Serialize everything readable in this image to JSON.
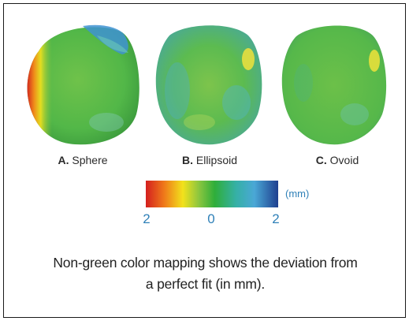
{
  "shapes": [
    {
      "letter": "A.",
      "name": "Sphere"
    },
    {
      "letter": "B.",
      "name": "Ellipsoid"
    },
    {
      "letter": "C.",
      "name": "Ovoid"
    }
  ],
  "colorbar": {
    "unit": "(mm)",
    "ticks": [
      "2",
      "0",
      "2"
    ],
    "colors": [
      "#d41f1f",
      "#ef7a1a",
      "#f2e21c",
      "#8cc63f",
      "#2fae3a",
      "#35b0a5",
      "#4aa8d6",
      "#1f3f8f"
    ]
  },
  "caption": {
    "line1": "Non-green color mapping shows the deviation from",
    "line2": "a perfect fit (in mm)."
  },
  "colors": {
    "green": "#52b748",
    "frame": "#1a1a1a",
    "accent_text": "#2f80b8"
  }
}
